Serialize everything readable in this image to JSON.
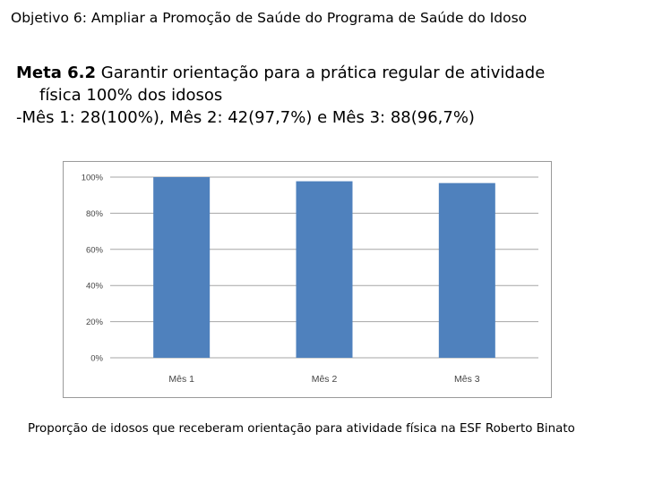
{
  "slide": {
    "title": "Objetivo 6: Ampliar a Promoção de Saúde do Programa de Saúde do Idoso",
    "meta_label": "Meta 6.2",
    "meta_text_1": " Garantir orientação para a prática regular de atividade",
    "meta_text_2": "física 100% dos idosos",
    "results": "-Mês 1: 28(100%), Mês 2: 42(97,7%) e Mês 3: 88(96,7%)",
    "caption": "Proporção de idosos que receberam orientação para atividade física na ESF Roberto Binato"
  },
  "chart_data": {
    "type": "bar",
    "categories": [
      "Mês 1",
      "Mês 2",
      "Mês 3"
    ],
    "values": [
      100,
      97.7,
      96.7
    ],
    "ylim": [
      0,
      100
    ],
    "yticks": [
      0,
      20,
      40,
      60,
      80,
      100
    ],
    "ytick_labels": [
      "0%",
      "20%",
      "40%",
      "60%",
      "80%",
      "100%"
    ],
    "grid": true,
    "legend": "none",
    "bar_color": "#4f81bd",
    "grid_color": "#a6a6a6"
  }
}
